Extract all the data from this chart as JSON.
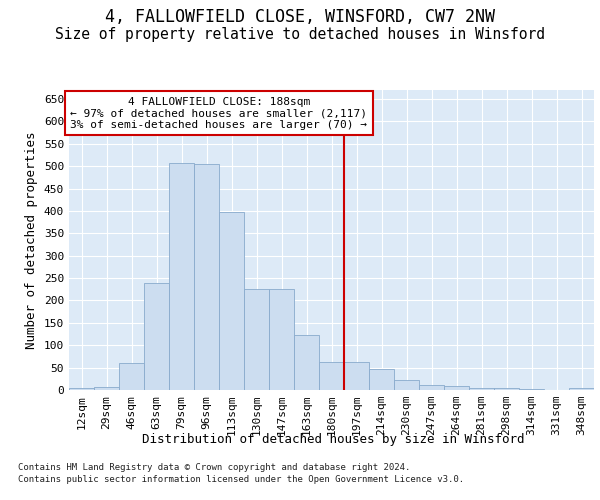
{
  "title": "4, FALLOWFIELD CLOSE, WINSFORD, CW7 2NW",
  "subtitle": "Size of property relative to detached houses in Winsford",
  "xlabel": "Distribution of detached houses by size in Winsford",
  "ylabel": "Number of detached properties",
  "footnote1": "Contains HM Land Registry data © Crown copyright and database right 2024.",
  "footnote2": "Contains public sector information licensed under the Open Government Licence v3.0.",
  "bar_labels": [
    "12sqm",
    "29sqm",
    "46sqm",
    "63sqm",
    "79sqm",
    "96sqm",
    "113sqm",
    "130sqm",
    "147sqm",
    "163sqm",
    "180sqm",
    "197sqm",
    "214sqm",
    "230sqm",
    "247sqm",
    "264sqm",
    "281sqm",
    "298sqm",
    "314sqm",
    "331sqm",
    "348sqm"
  ],
  "bar_values": [
    5,
    7,
    60,
    240,
    507,
    505,
    397,
    225,
    225,
    122,
    62,
    62,
    48,
    22,
    12,
    10,
    5,
    5,
    2,
    1,
    5
  ],
  "bar_color": "#ccddf0",
  "bar_edge_color": "#88aacc",
  "vline_color": "#cc0000",
  "vline_x": 10.5,
  "annotation_title": "4 FALLOWFIELD CLOSE: 188sqm",
  "annotation_line1": "← 97% of detached houses are smaller (2,117)",
  "annotation_line2": "3% of semi-detached houses are larger (70) →",
  "ylim_max": 670,
  "yticks": [
    0,
    50,
    100,
    150,
    200,
    250,
    300,
    350,
    400,
    450,
    500,
    550,
    600,
    650
  ],
  "bg_color": "#ddeaf7",
  "title_fontsize": 12,
  "subtitle_fontsize": 10.5,
  "tick_fontsize": 8,
  "label_fontsize": 9,
  "footnote_fontsize": 6.5,
  "annot_fontsize": 8
}
